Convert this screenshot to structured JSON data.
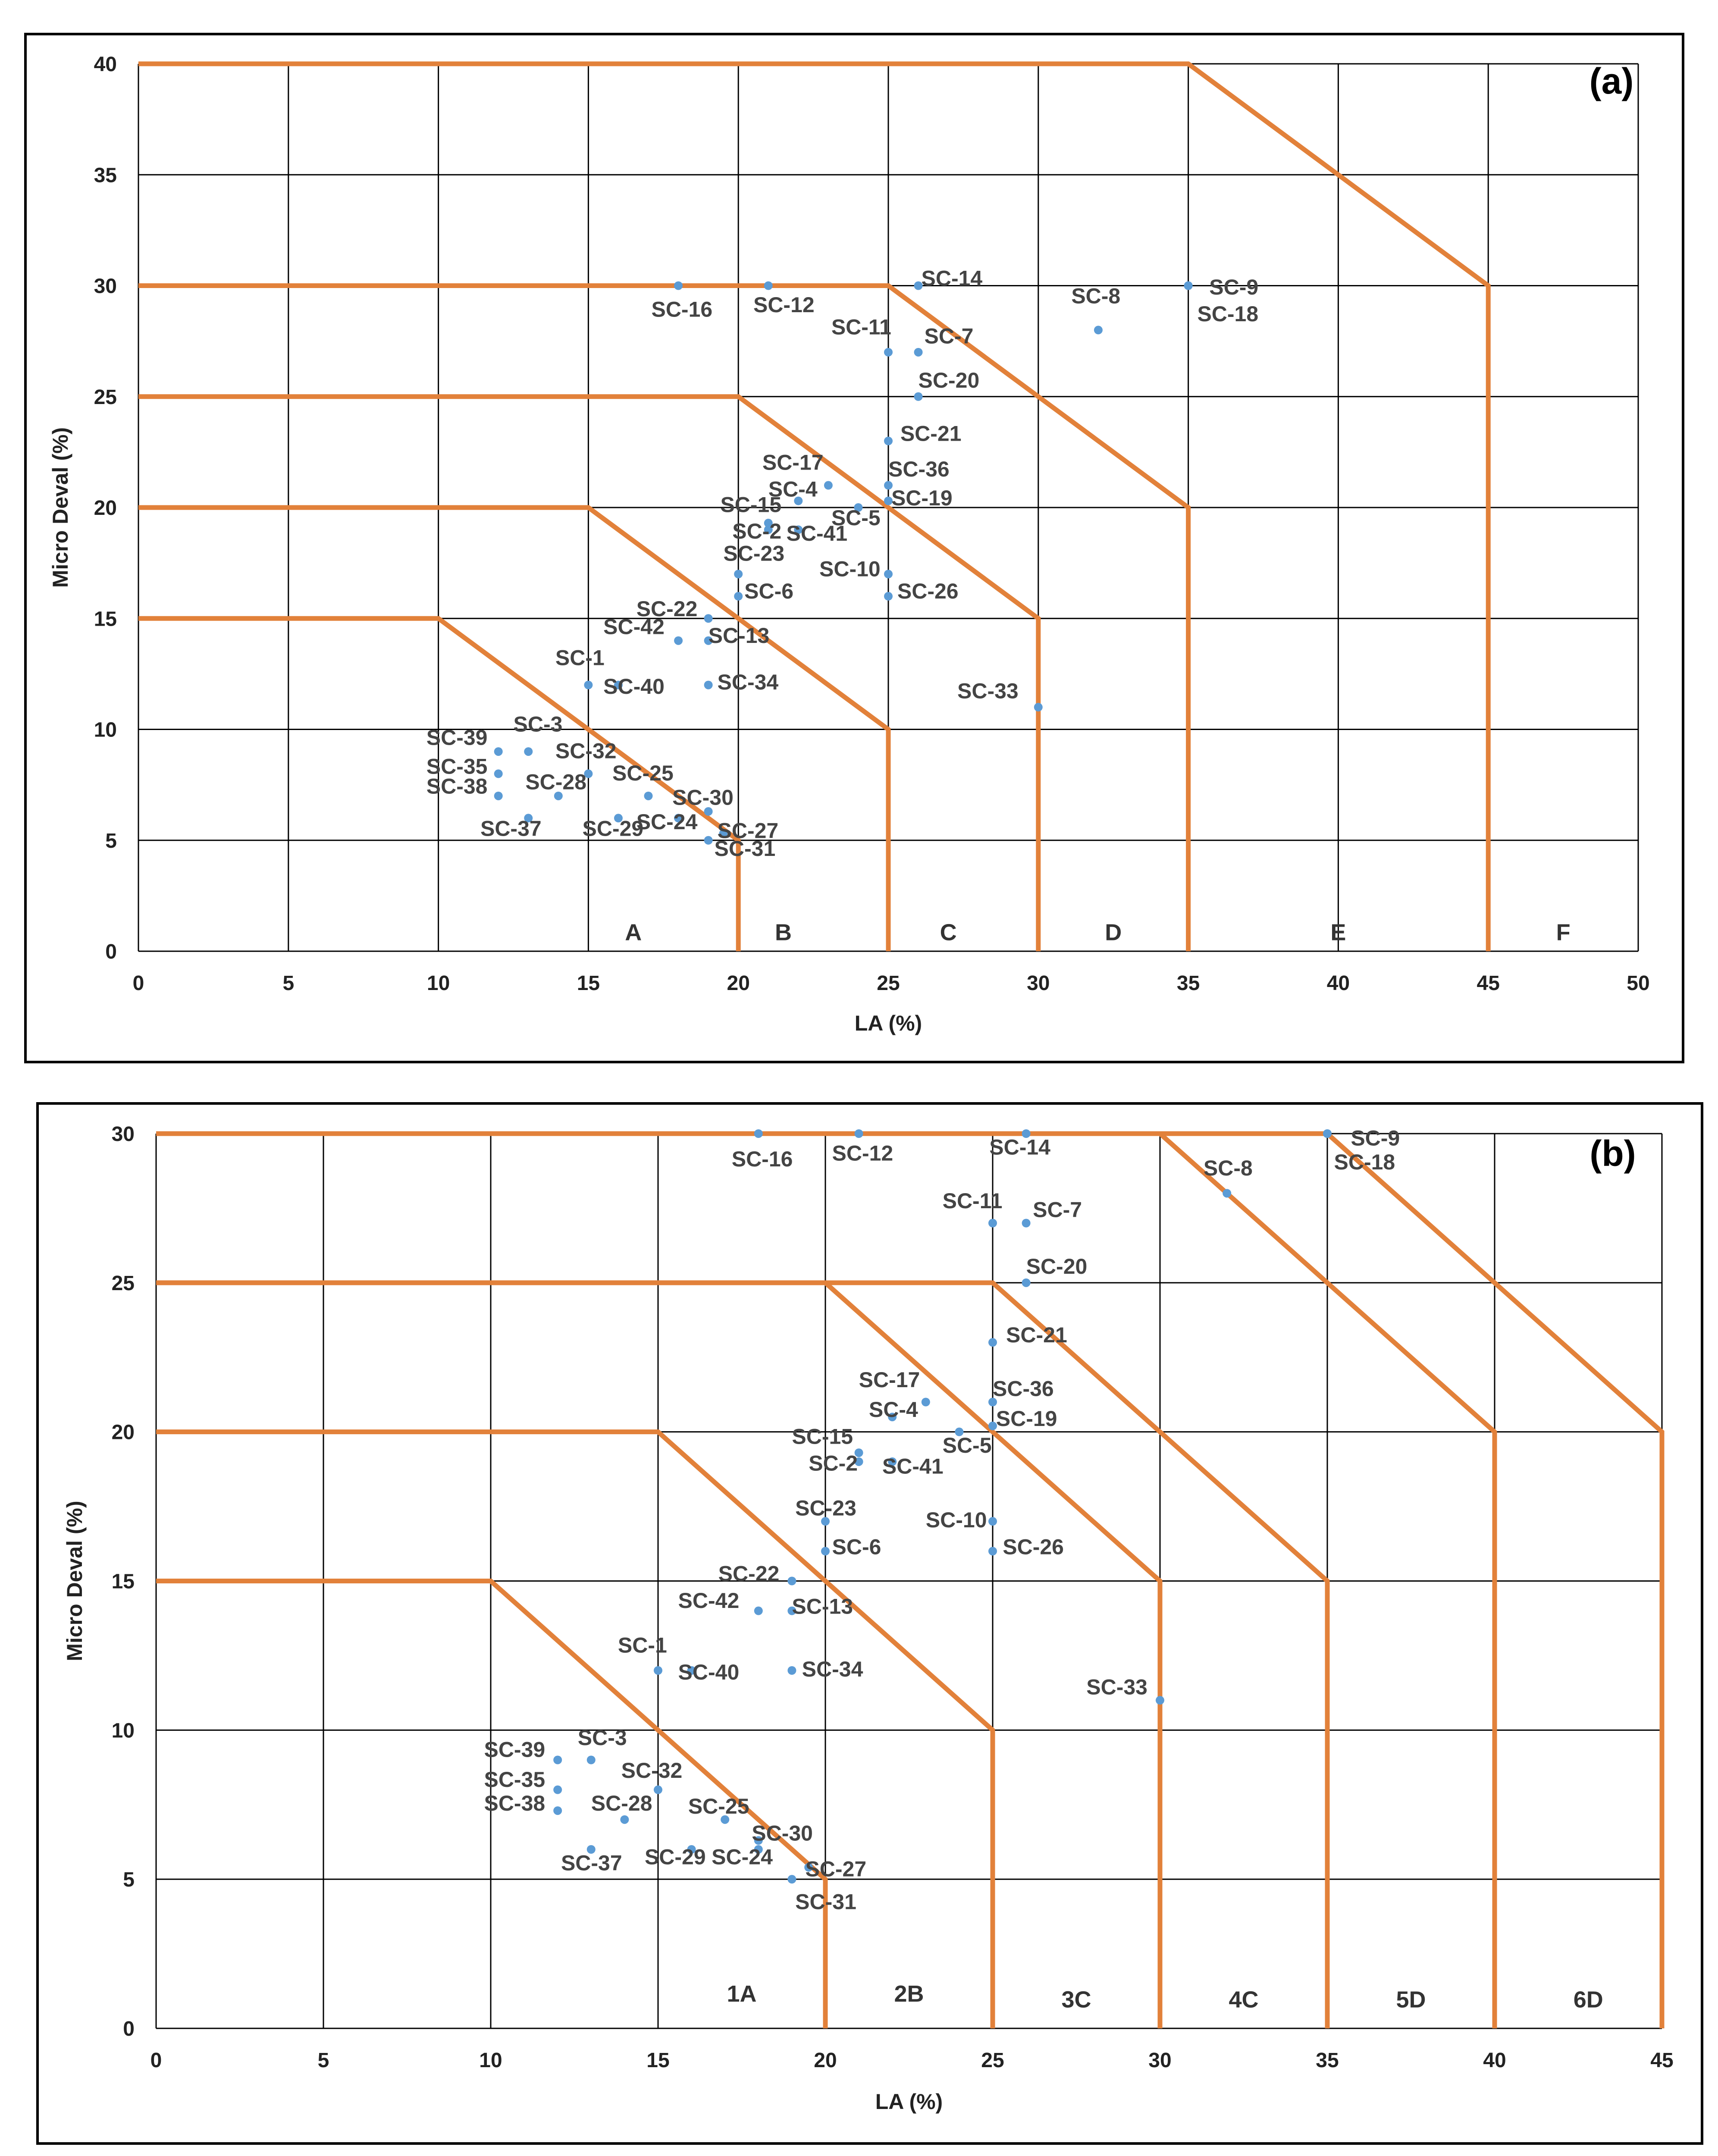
{
  "chart_data": [
    {
      "id": "a",
      "type": "scatter",
      "title": "(a)",
      "xlabel": "LA (%)",
      "ylabel": "Micro Deval (%)",
      "xlim": [
        0,
        50
      ],
      "ylim": [
        0,
        40
      ],
      "xticks": [
        0,
        5,
        10,
        15,
        20,
        25,
        30,
        35,
        40,
        45,
        50
      ],
      "yticks": [
        0,
        5,
        10,
        15,
        20,
        25,
        30,
        35,
        40
      ],
      "grid": true,
      "boundaries": [
        [
          [
            0,
            15
          ],
          [
            10,
            15
          ],
          [
            20,
            5
          ],
          [
            20,
            0
          ]
        ],
        [
          [
            0,
            20
          ],
          [
            15,
            20
          ],
          [
            25,
            10
          ],
          [
            25,
            0
          ]
        ],
        [
          [
            0,
            25
          ],
          [
            20,
            25
          ],
          [
            30,
            15
          ],
          [
            30,
            0
          ]
        ],
        [
          [
            0,
            30
          ],
          [
            25,
            30
          ],
          [
            35,
            20
          ],
          [
            35,
            0
          ]
        ],
        [
          [
            0,
            40
          ],
          [
            35,
            40
          ],
          [
            45,
            30
          ],
          [
            45,
            0
          ]
        ]
      ],
      "zones": [
        {
          "label": "A",
          "x": 16.5,
          "y": 0.5
        },
        {
          "label": "B",
          "x": 21.5,
          "y": 0.5
        },
        {
          "label": "C",
          "x": 27,
          "y": 0.5
        },
        {
          "label": "D",
          "x": 32.5,
          "y": 0.5
        },
        {
          "label": "E",
          "x": 40,
          "y": 0.5
        },
        {
          "label": "F",
          "x": 47.5,
          "y": 0.5
        }
      ],
      "points": [
        {
          "label": "SC-16",
          "x": 18,
          "y": 30,
          "lx": 17.1,
          "ly": 28.6
        },
        {
          "label": "SC-12",
          "x": 21,
          "y": 30,
          "lx": 20.5,
          "ly": 28.8
        },
        {
          "label": "SC-14",
          "x": 26,
          "y": 30,
          "lx": 26.1,
          "ly": 30.0
        },
        {
          "label": "SC-11",
          "x": 25,
          "y": 27,
          "lx": 23.1,
          "ly": 27.8
        },
        {
          "label": "SC-7",
          "x": 26,
          "y": 27,
          "lx": 26.2,
          "ly": 27.4
        },
        {
          "label": "SC-8",
          "x": 32,
          "y": 28,
          "lx": 31.1,
          "ly": 29.2
        },
        {
          "label": "SC-9",
          "x": 35,
          "y": 30,
          "lx": 35.7,
          "ly": 29.6
        },
        {
          "label": "SC-18",
          "x": 35,
          "y": 30,
          "lx": 35.3,
          "ly": 28.4
        },
        {
          "label": "SC-20",
          "x": 26,
          "y": 25,
          "lx": 26.0,
          "ly": 25.4
        },
        {
          "label": "SC-21",
          "x": 25,
          "y": 23,
          "lx": 25.4,
          "ly": 23.0
        },
        {
          "label": "SC-36",
          "x": 25,
          "y": 21,
          "lx": 25.0,
          "ly": 21.4
        },
        {
          "label": "SC-19",
          "x": 25,
          "y": 20.3,
          "lx": 25.1,
          "ly": 20.1
        },
        {
          "label": "SC-17",
          "x": 23,
          "y": 21,
          "lx": 20.8,
          "ly": 21.7
        },
        {
          "label": "SC-4",
          "x": 22,
          "y": 20.3,
          "lx": 21.0,
          "ly": 20.5
        },
        {
          "label": "SC-5",
          "x": 24,
          "y": 20,
          "lx": 23.1,
          "ly": 19.2
        },
        {
          "label": "SC-15",
          "x": 21,
          "y": 19.3,
          "lx": 19.4,
          "ly": 19.8
        },
        {
          "label": "SC-2",
          "x": 21,
          "y": 19,
          "lx": 19.8,
          "ly": 18.6
        },
        {
          "label": "SC-41",
          "x": 22,
          "y": 19,
          "lx": 21.6,
          "ly": 18.5
        },
        {
          "label": "SC-23",
          "x": 20,
          "y": 17,
          "lx": 19.5,
          "ly": 17.6
        },
        {
          "label": "SC-10",
          "x": 25,
          "y": 17,
          "lx": 22.7,
          "ly": 16.9
        },
        {
          "label": "SC-6",
          "x": 20,
          "y": 16,
          "lx": 20.2,
          "ly": 15.9
        },
        {
          "label": "SC-26",
          "x": 25,
          "y": 16,
          "lx": 25.3,
          "ly": 15.9
        },
        {
          "label": "SC-22",
          "x": 19,
          "y": 15,
          "lx": 16.6,
          "ly": 15.1
        },
        {
          "label": "SC-42",
          "x": 18,
          "y": 14,
          "lx": 15.5,
          "ly": 14.3
        },
        {
          "label": "SC-13",
          "x": 19,
          "y": 14,
          "lx": 19.0,
          "ly": 13.9
        },
        {
          "label": "SC-1",
          "x": 15,
          "y": 12,
          "lx": 13.9,
          "ly": 12.9
        },
        {
          "label": "SC-40",
          "x": 16,
          "y": 12,
          "lx": 15.5,
          "ly": 11.6
        },
        {
          "label": "SC-34",
          "x": 19,
          "y": 12,
          "lx": 19.3,
          "ly": 11.8
        },
        {
          "label": "SC-33",
          "x": 30,
          "y": 11,
          "lx": 27.3,
          "ly": 11.4
        },
        {
          "label": "SC-39",
          "x": 12,
          "y": 9,
          "lx": 9.6,
          "ly": 9.3
        },
        {
          "label": "SC-3",
          "x": 13,
          "y": 9,
          "lx": 12.5,
          "ly": 9.9
        },
        {
          "label": "SC-35",
          "x": 12,
          "y": 8,
          "lx": 9.6,
          "ly": 8.0
        },
        {
          "label": "SC-32",
          "x": 15,
          "y": 8,
          "lx": 13.9,
          "ly": 8.7
        },
        {
          "label": "SC-38",
          "x": 12,
          "y": 7,
          "lx": 9.6,
          "ly": 7.1
        },
        {
          "label": "SC-28",
          "x": 14,
          "y": 7,
          "lx": 12.9,
          "ly": 7.3
        },
        {
          "label": "SC-25",
          "x": 17,
          "y": 7,
          "lx": 15.8,
          "ly": 7.7
        },
        {
          "label": "SC-30",
          "x": 19,
          "y": 6.3,
          "lx": 17.8,
          "ly": 6.6
        },
        {
          "label": "SC-37",
          "x": 13,
          "y": 6,
          "lx": 11.4,
          "ly": 5.2
        },
        {
          "label": "SC-29",
          "x": 16,
          "y": 6,
          "lx": 14.8,
          "ly": 5.2
        },
        {
          "label": "SC-24",
          "x": 18,
          "y": 6,
          "lx": 16.6,
          "ly": 5.5
        },
        {
          "label": "SC-27",
          "x": 19.5,
          "y": 5.3,
          "lx": 19.3,
          "ly": 5.1
        },
        {
          "label": "SC-31",
          "x": 19,
          "y": 5,
          "lx": 19.2,
          "ly": 4.3
        }
      ]
    },
    {
      "id": "b",
      "type": "scatter",
      "title": "(b)",
      "xlabel": "LA (%)",
      "ylabel": "Micro Deval (%)",
      "xlim": [
        0,
        45
      ],
      "ylim": [
        0,
        30
      ],
      "xticks": [
        0,
        5,
        10,
        15,
        20,
        25,
        30,
        35,
        40,
        45
      ],
      "yticks": [
        0,
        5,
        10,
        15,
        20,
        25,
        30
      ],
      "grid": true,
      "boundaries": [
        [
          [
            0,
            15
          ],
          [
            10,
            15
          ],
          [
            20,
            5
          ],
          [
            20,
            0
          ]
        ],
        [
          [
            0,
            20
          ],
          [
            15,
            20
          ],
          [
            25,
            10
          ],
          [
            25,
            0
          ]
        ],
        [
          [
            0,
            25
          ],
          [
            20,
            25
          ],
          [
            30,
            15
          ],
          [
            30,
            0
          ]
        ],
        [
          [
            0,
            25
          ],
          [
            25,
            25
          ],
          [
            35,
            15
          ],
          [
            35,
            0
          ]
        ],
        [
          [
            0,
            30
          ],
          [
            30,
            30
          ],
          [
            40,
            20
          ],
          [
            40,
            0
          ]
        ],
        [
          [
            0,
            30
          ],
          [
            35,
            30
          ],
          [
            45,
            20
          ],
          [
            45,
            0
          ]
        ]
      ],
      "zones": [
        {
          "label": "1A",
          "x": 17.5,
          "y": 0.9
        },
        {
          "label": "2B",
          "x": 22.5,
          "y": 0.9
        },
        {
          "label": "3C",
          "x": 27.5,
          "y": 0.7
        },
        {
          "label": "4C",
          "x": 32.5,
          "y": 0.7
        },
        {
          "label": "5D",
          "x": 37.5,
          "y": 0.7
        },
        {
          "label": "6D",
          "x": 42.8,
          "y": 0.7
        }
      ],
      "points": [
        {
          "label": "SC-16",
          "x": 18,
          "y": 30,
          "lx": 17.2,
          "ly": 28.9
        },
        {
          "label": "SC-12",
          "x": 21,
          "y": 30,
          "lx": 20.2,
          "ly": 29.1
        },
        {
          "label": "SC-14",
          "x": 26,
          "y": 30,
          "lx": 24.9,
          "ly": 29.3
        },
        {
          "label": "SC-9",
          "x": 35,
          "y": 30,
          "lx": 35.7,
          "ly": 29.6
        },
        {
          "label": "SC-18",
          "x": 35,
          "y": 30,
          "lx": 35.2,
          "ly": 28.8
        },
        {
          "label": "SC-8",
          "x": 32,
          "y": 28,
          "lx": 31.3,
          "ly": 28.6
        },
        {
          "label": "SC-11",
          "x": 25,
          "y": 27,
          "lx": 23.5,
          "ly": 27.5
        },
        {
          "label": "SC-7",
          "x": 26,
          "y": 27,
          "lx": 26.2,
          "ly": 27.2
        },
        {
          "label": "SC-20",
          "x": 26,
          "y": 25,
          "lx": 26.0,
          "ly": 25.3
        },
        {
          "label": "SC-21",
          "x": 25,
          "y": 23,
          "lx": 25.4,
          "ly": 23.0
        },
        {
          "label": "SC-36",
          "x": 25,
          "y": 21,
          "lx": 25.0,
          "ly": 21.2
        },
        {
          "label": "SC-19",
          "x": 25,
          "y": 20.2,
          "lx": 25.1,
          "ly": 20.2
        },
        {
          "label": "SC-17",
          "x": 23,
          "y": 21,
          "lx": 21.0,
          "ly": 21.5
        },
        {
          "label": "SC-4",
          "x": 22,
          "y": 20.5,
          "lx": 21.3,
          "ly": 20.5
        },
        {
          "label": "SC-5",
          "x": 24,
          "y": 20,
          "lx": 23.5,
          "ly": 19.3
        },
        {
          "label": "SC-15",
          "x": 21,
          "y": 19.3,
          "lx": 19.0,
          "ly": 19.6
        },
        {
          "label": "SC-2",
          "x": 21,
          "y": 19,
          "lx": 19.5,
          "ly": 18.7
        },
        {
          "label": "SC-41",
          "x": 22,
          "y": 19,
          "lx": 21.7,
          "ly": 18.6
        },
        {
          "label": "SC-23",
          "x": 20,
          "y": 17,
          "lx": 19.1,
          "ly": 17.2
        },
        {
          "label": "SC-10",
          "x": 25,
          "y": 17,
          "lx": 23.0,
          "ly": 16.8
        },
        {
          "label": "SC-6",
          "x": 20,
          "y": 16,
          "lx": 20.2,
          "ly": 15.9
        },
        {
          "label": "SC-26",
          "x": 25,
          "y": 16,
          "lx": 25.3,
          "ly": 15.9
        },
        {
          "label": "SC-22",
          "x": 19,
          "y": 15,
          "lx": 16.8,
          "ly": 15.0
        },
        {
          "label": "SC-42",
          "x": 18,
          "y": 14,
          "lx": 15.6,
          "ly": 14.1
        },
        {
          "label": "SC-13",
          "x": 19,
          "y": 14,
          "lx": 19.0,
          "ly": 13.9
        },
        {
          "label": "SC-1",
          "x": 15,
          "y": 12,
          "lx": 13.8,
          "ly": 12.6
        },
        {
          "label": "SC-40",
          "x": 16,
          "y": 12,
          "lx": 15.6,
          "ly": 11.7
        },
        {
          "label": "SC-34",
          "x": 19,
          "y": 12,
          "lx": 19.3,
          "ly": 11.8
        },
        {
          "label": "SC-33",
          "x": 30,
          "y": 11,
          "lx": 27.8,
          "ly": 11.2
        },
        {
          "label": "SC-39",
          "x": 12,
          "y": 9,
          "lx": 9.8,
          "ly": 9.1
        },
        {
          "label": "SC-3",
          "x": 13,
          "y": 9,
          "lx": 12.6,
          "ly": 9.5
        },
        {
          "label": "SC-35",
          "x": 12,
          "y": 8,
          "lx": 9.8,
          "ly": 8.1
        },
        {
          "label": "SC-32",
          "x": 15,
          "y": 8,
          "lx": 13.9,
          "ly": 8.4
        },
        {
          "label": "SC-38",
          "x": 12,
          "y": 7.3,
          "lx": 9.8,
          "ly": 7.3
        },
        {
          "label": "SC-28",
          "x": 14,
          "y": 7,
          "lx": 13.0,
          "ly": 7.3
        },
        {
          "label": "SC-25",
          "x": 17,
          "y": 7,
          "lx": 15.9,
          "ly": 7.2
        },
        {
          "label": "SC-30",
          "x": 18,
          "y": 6.3,
          "lx": 17.8,
          "ly": 6.3
        },
        {
          "label": "SC-37",
          "x": 13,
          "y": 6,
          "lx": 12.1,
          "ly": 5.3
        },
        {
          "label": "SC-29",
          "x": 16,
          "y": 6,
          "lx": 14.6,
          "ly": 5.5
        },
        {
          "label": "SC-24",
          "x": 18,
          "y": 6,
          "lx": 16.6,
          "ly": 5.5
        },
        {
          "label": "SC-27",
          "x": 19.5,
          "y": 5.4,
          "lx": 19.4,
          "ly": 5.1
        },
        {
          "label": "SC-31",
          "x": 19,
          "y": 5,
          "lx": 19.1,
          "ly": 4.0
        }
      ]
    }
  ],
  "colors": {
    "boundary": "#E2813A",
    "point": "#5B9BD5",
    "grid": "#000000",
    "text": "#222222"
  }
}
